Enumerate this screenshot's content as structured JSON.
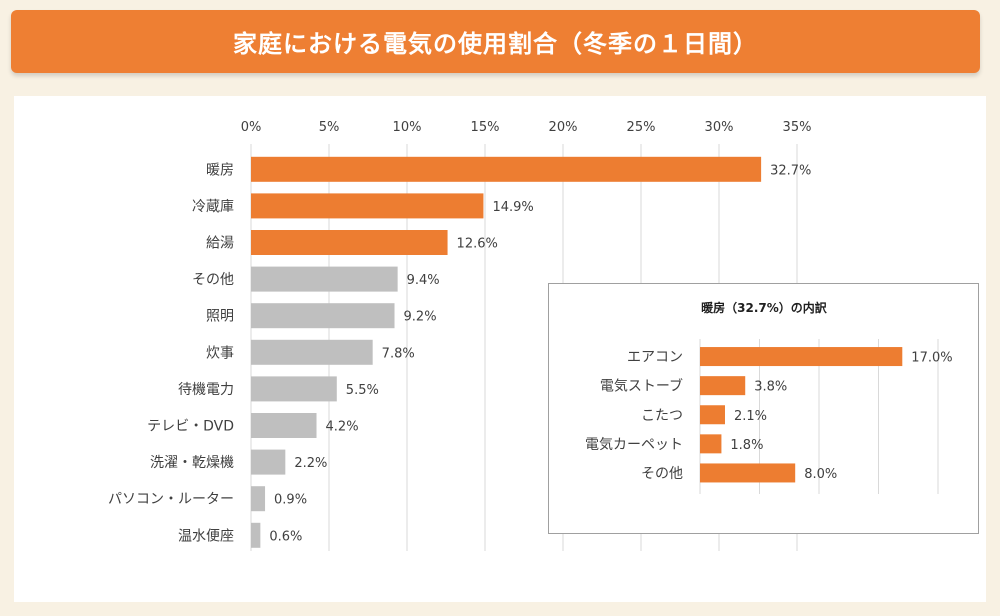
{
  "title": "家庭における電気の使用割合（冬季の１日間）",
  "chart_data": [
    {
      "type": "bar",
      "orientation": "horizontal",
      "title": "",
      "xlabel": "",
      "ylabel": "",
      "xlim": [
        0,
        35
      ],
      "x_ticks": [
        "0%",
        "5%",
        "10%",
        "15%",
        "20%",
        "25%",
        "30%",
        "35%"
      ],
      "grid": true,
      "categories": [
        "暖房",
        "冷蔵庫",
        "給湯",
        "その他",
        "照明",
        "炊事",
        "待機電力",
        "テレビ・DVD",
        "洗濯・乾燥機",
        "パソコン・ルーター",
        "温水便座"
      ],
      "values": [
        32.7,
        14.9,
        12.6,
        9.4,
        9.2,
        7.8,
        5.5,
        4.2,
        2.2,
        0.9,
        0.6
      ],
      "value_labels": [
        "32.7%",
        "14.9%",
        "12.6%",
        "9.4%",
        "9.2%",
        "7.8%",
        "5.5%",
        "4.2%",
        "2.2%",
        "0.9%",
        "0.6%"
      ],
      "colors": [
        "#ed7d31",
        "#ed7d31",
        "#ed7d31",
        "#bfbfbf",
        "#bfbfbf",
        "#bfbfbf",
        "#bfbfbf",
        "#bfbfbf",
        "#bfbfbf",
        "#bfbfbf",
        "#bfbfbf"
      ]
    },
    {
      "type": "bar",
      "orientation": "horizontal",
      "title": "暖房（32.7%）の内訳",
      "xlim": [
        0,
        20
      ],
      "grid": true,
      "categories": [
        "エアコン",
        "電気ストーブ",
        "こたつ",
        "電気カーペット",
        "その他"
      ],
      "values": [
        17.0,
        3.8,
        2.1,
        1.8,
        8.0
      ],
      "value_labels": [
        "17.0%",
        "3.8%",
        "2.1%",
        "1.8%",
        "8.0%"
      ],
      "colors": [
        "#ed7d31",
        "#ed7d31",
        "#ed7d31",
        "#ed7d31",
        "#ed7d31"
      ]
    }
  ]
}
